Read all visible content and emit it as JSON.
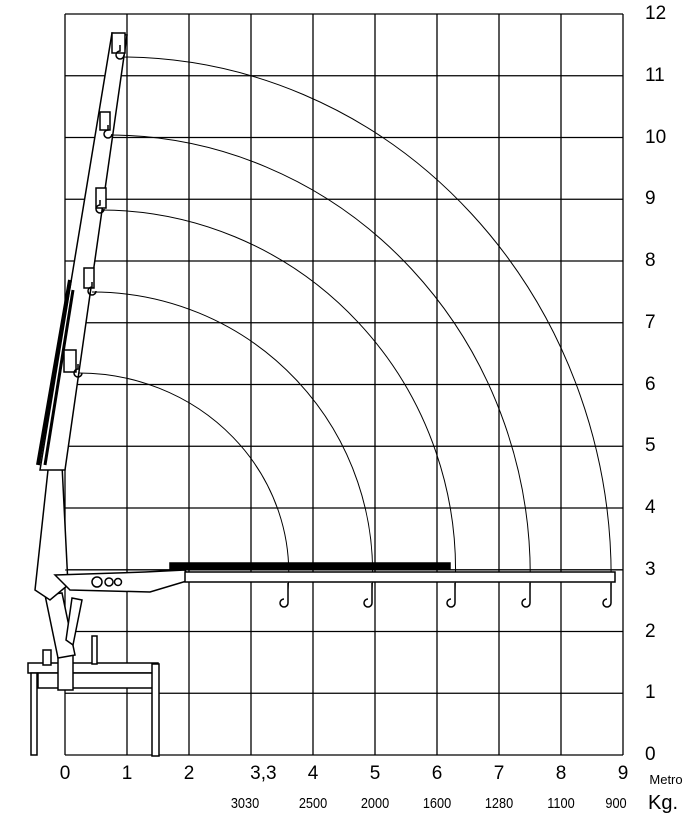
{
  "diagram": {
    "x_axis": {
      "unit_label": "Metro",
      "tick_labels": [
        "0",
        "1",
        "2",
        "3,3",
        "4",
        "5",
        "6",
        "7",
        "8",
        "9"
      ]
    },
    "y_axis": {
      "tick_labels": [
        "0",
        "1",
        "2",
        "3",
        "4",
        "5",
        "6",
        "7",
        "8",
        "9",
        "10",
        "11",
        "12"
      ]
    },
    "load_row": {
      "unit_label": "Kg.",
      "values": [
        "3030",
        "2500",
        "2000",
        "1600",
        "1280",
        "1100",
        "900"
      ]
    },
    "line_color": "#000000",
    "background": "#ffffff"
  }
}
